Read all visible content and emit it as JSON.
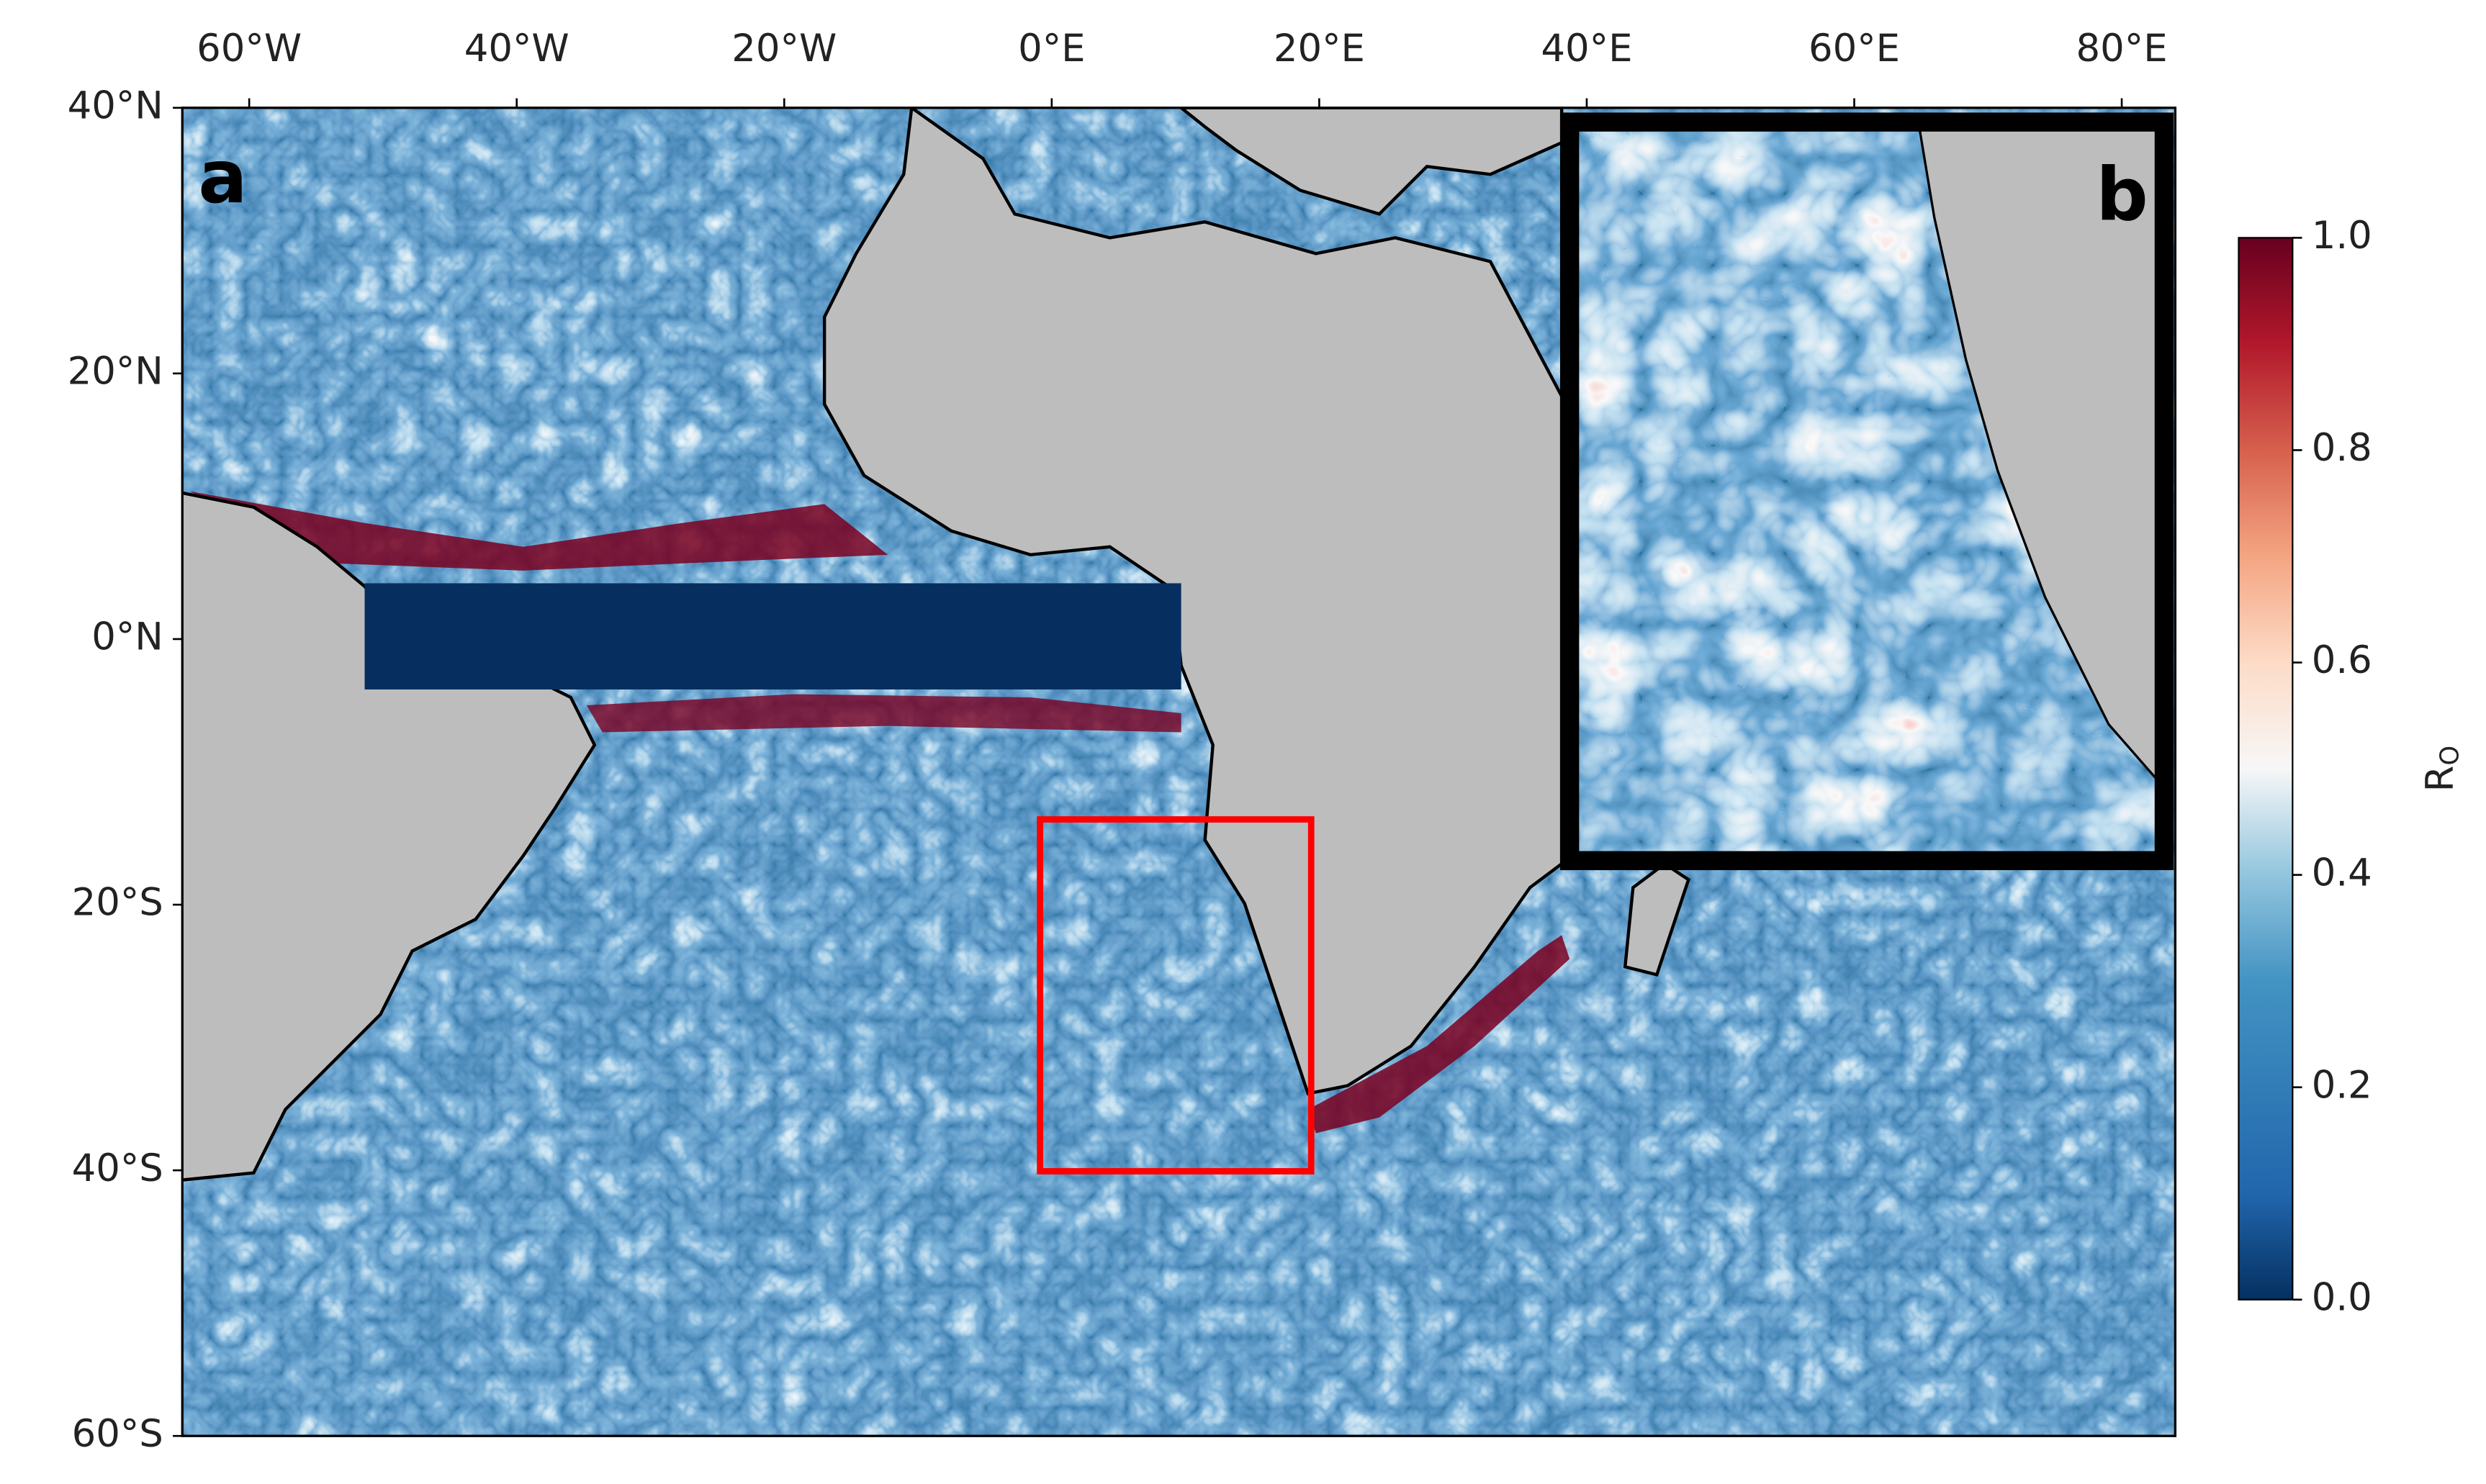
{
  "chart_data": {
    "type": "map",
    "panel_labels": [
      "a",
      "b"
    ],
    "xlim": [
      -65,
      84
    ],
    "ylim": [
      -60,
      40
    ],
    "xticks": [
      {
        "value": -60,
        "label": "60°W"
      },
      {
        "value": -40,
        "label": "40°W"
      },
      {
        "value": -20,
        "label": "20°W"
      },
      {
        "value": 0,
        "label": "0°E"
      },
      {
        "value": 20,
        "label": "20°E"
      },
      {
        "value": 40,
        "label": "40°E"
      },
      {
        "value": 60,
        "label": "60°E"
      },
      {
        "value": 80,
        "label": "80°E"
      }
    ],
    "yticks": [
      {
        "value": 40,
        "label": "40°N"
      },
      {
        "value": 20,
        "label": "20°N"
      },
      {
        "value": 0,
        "label": "0°N"
      },
      {
        "value": -20,
        "label": "20°S"
      },
      {
        "value": -40,
        "label": "40°S"
      },
      {
        "value": -60,
        "label": "60°S"
      }
    ],
    "colorbar": {
      "lim": [
        0,
        1
      ],
      "ticks": [
        {
          "value": 0,
          "label": "0.0"
        },
        0.2,
        0.4,
        0.6,
        0.8,
        {
          "value": 1,
          "label": "1.0"
        }
      ],
      "label": "R",
      "label_subscript": "O"
    }
  }
}
